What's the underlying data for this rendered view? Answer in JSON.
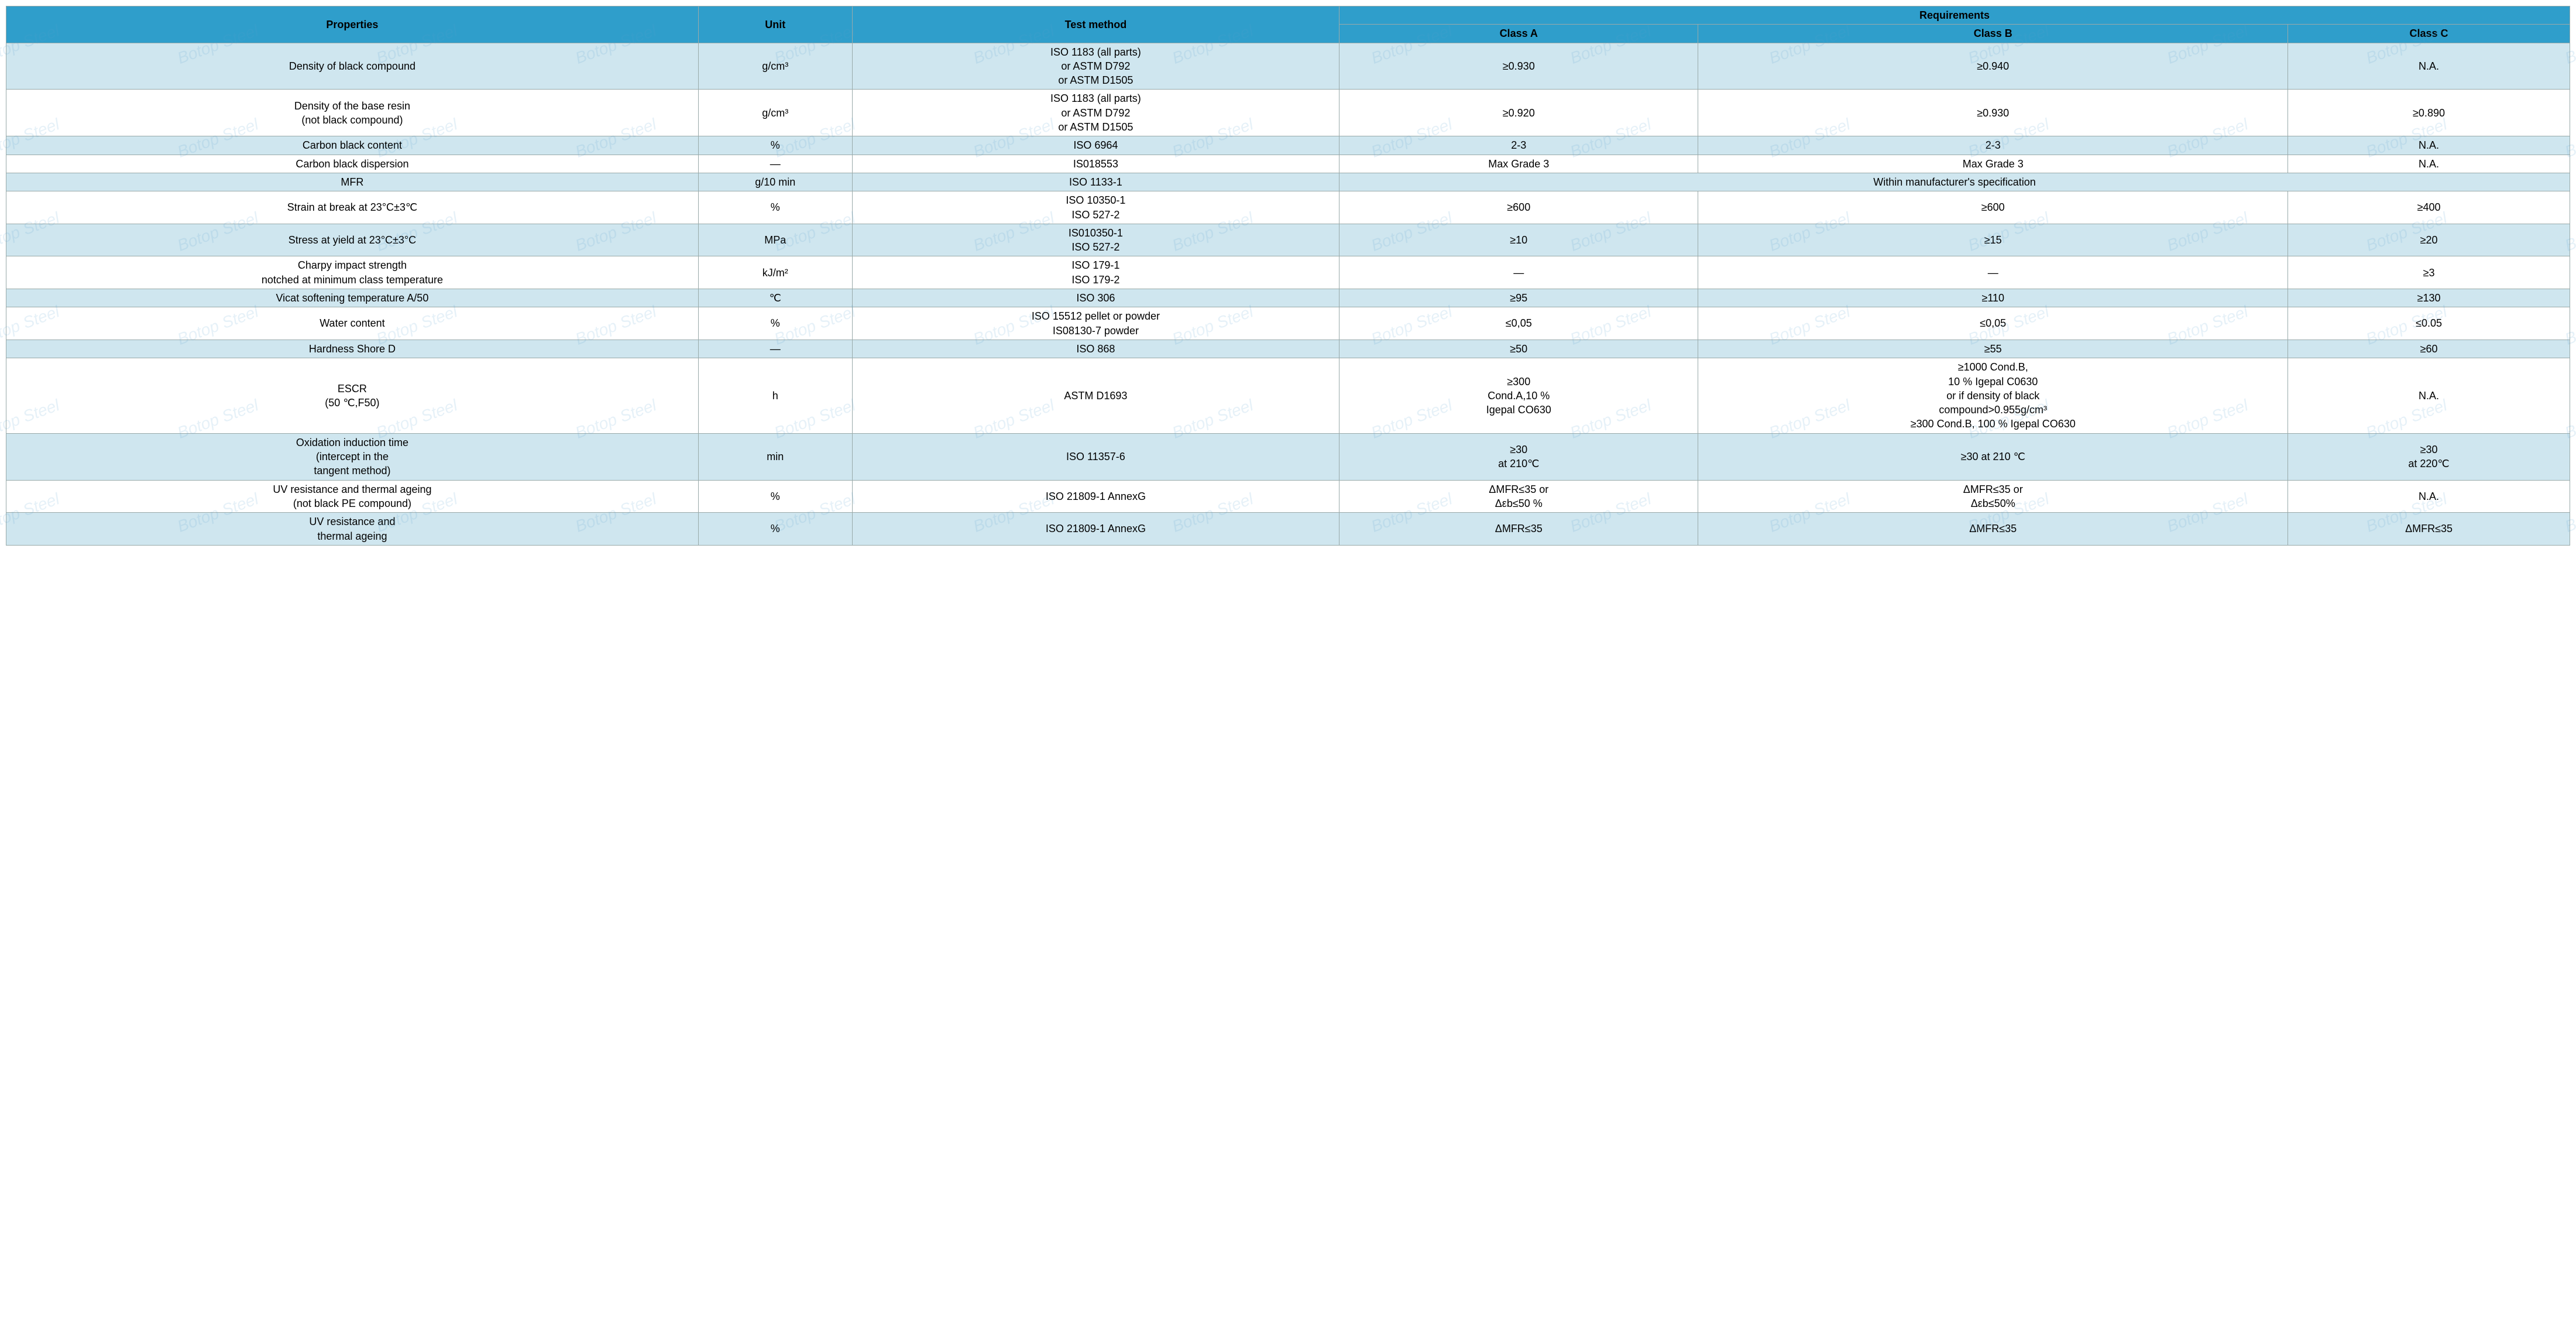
{
  "colors": {
    "header_bg": "#2f9ecb",
    "alt_bg": "#cfe6ef",
    "border": "#9aa"
  },
  "watermark_text": "Botop Steel",
  "header": {
    "properties": "Properties",
    "unit": "Unit",
    "test_method": "Test method",
    "requirements": "Requirements",
    "class_a": "Class A",
    "class_b": "Class B",
    "class_c": "Class C"
  },
  "rows": [
    {
      "alt": true,
      "property": "Density of black compound",
      "unit": "g/cm³",
      "method": "ISO 1183 (all parts)\nor ASTM D792\nor ASTM D1505",
      "a": "≥0.930",
      "b": "≥0.940",
      "c": "N.A."
    },
    {
      "alt": false,
      "property": "Density of the base resin\n(not black compound)",
      "unit": "g/cm³",
      "method": "ISO 1183 (all parts)\nor ASTM D792\nor ASTM D1505",
      "a": "≥0.920",
      "b": "≥0.930",
      "c": "≥0.890"
    },
    {
      "alt": true,
      "property": "Carbon black content",
      "unit": "%",
      "method": "ISO 6964",
      "a": "2-3",
      "b": "2-3",
      "c": "N.A."
    },
    {
      "alt": false,
      "property": "Carbon black dispersion",
      "unit": "—",
      "method": "IS018553",
      "a": "Max Grade 3",
      "b": "Max Grade 3",
      "c": "N.A."
    },
    {
      "alt": true,
      "merged_req": true,
      "property": "MFR",
      "unit": "g/10 min",
      "method": "ISO 1133-1",
      "merged": "Within manufacturer's specification"
    },
    {
      "alt": false,
      "property": "Strain at break at 23°C±3℃",
      "unit": "%",
      "method": "ISO 10350-1\nISO 527-2",
      "a": "≥600",
      "b": "≥600",
      "c": "≥400"
    },
    {
      "alt": true,
      "property": "Stress at yield at 23°C±3°C",
      "unit": "MPa",
      "method": "IS010350-1\nISO 527-2",
      "a": "≥10",
      "b": "≥15",
      "c": "≥20"
    },
    {
      "alt": false,
      "property": "Charpy impact strength\nnotched at minimum class temperature",
      "unit": "kJ/m²",
      "method": "ISO 179-1\nISO 179-2",
      "a": "—",
      "b": "—",
      "c": "≥3"
    },
    {
      "alt": true,
      "property": "Vicat softening temperature A/50",
      "unit": "℃",
      "method": "ISO 306",
      "a": "≥95",
      "b": "≥110",
      "c": "≥130"
    },
    {
      "alt": false,
      "property": "Water content",
      "unit": "%",
      "method": "ISO 15512 pellet or powder\nIS08130-7 powder",
      "a": "≤0,05",
      "b": "≤0,05",
      "c": "≤0.05"
    },
    {
      "alt": true,
      "property": "Hardness Shore D",
      "unit": "—",
      "method": "ISO 868",
      "a": "≥50",
      "b": "≥55",
      "c": "≥60"
    },
    {
      "alt": false,
      "property": "ESCR\n(50 ℃,F50)",
      "unit": "h",
      "method": "ASTM D1693",
      "a": "≥300\nCond.A,10 %\nIgepal CO630",
      "b": "≥1000 Cond.B,\n10 % Igepal C0630\nor if density of black\ncompound>0.955g/cm³\n≥300 Cond.B, 100 % Igepal CO630",
      "c": "N.A."
    },
    {
      "alt": true,
      "property": "Oxidation induction time\n(intercept in the\ntangent method)",
      "unit": "min",
      "method": "ISO 11357-6",
      "a": "≥30\nat 210℃",
      "b": "≥30 at 210 ℃",
      "c": "≥30\nat 220℃"
    },
    {
      "alt": false,
      "property": "UV resistance and thermal ageing\n(not black PE compound)",
      "unit": "%",
      "method": "ISO 21809-1 AnnexG",
      "a": "ΔMFR≤35 or\nΔεb≤50 %",
      "b": "ΔMFR≤35 or\nΔεb≤50%",
      "c": "N.A."
    },
    {
      "alt": true,
      "property": "UV resistance and\nthermal ageing",
      "unit": "%",
      "method": "ISO 21809-1 AnnexG",
      "a": "ΔMFR≤35",
      "b": "ΔMFR≤35",
      "c": "ΔMFR≤35"
    }
  ]
}
